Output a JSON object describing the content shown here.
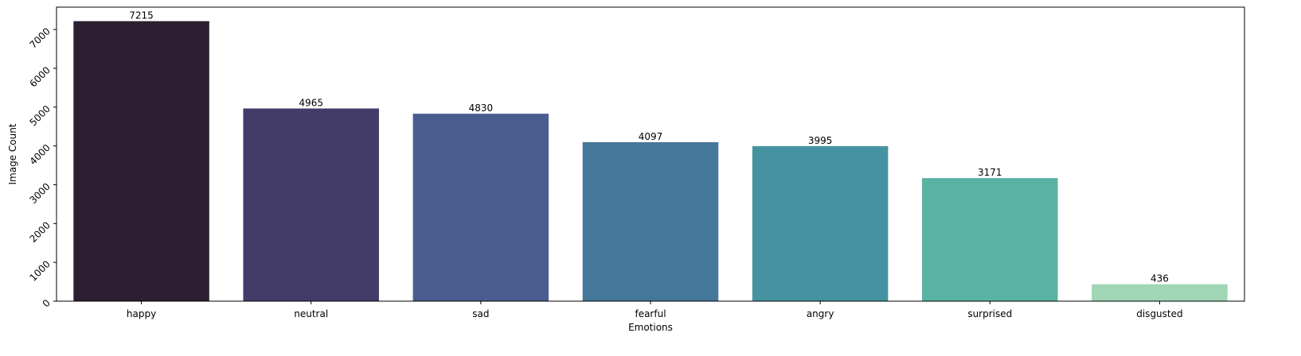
{
  "chart_data": {
    "type": "bar",
    "categories": [
      "happy",
      "neutral",
      "sad",
      "fearful",
      "angry",
      "surprised",
      "disgusted"
    ],
    "values": [
      7215,
      4965,
      4830,
      4097,
      3995,
      3171,
      436
    ],
    "colors": [
      "#2b1f31",
      "#433b68",
      "#4a5d91",
      "#44789a",
      "#4593a0",
      "#5ab3a2",
      "#a0d5b6"
    ],
    "title": "",
    "xlabel": "Emotions",
    "ylabel": "Image Count",
    "ylim": [
      0,
      7576
    ],
    "yticks": [
      0,
      1000,
      2000,
      3000,
      4000,
      5000,
      6000,
      7000
    ],
    "grid": false,
    "show_data_labels": true
  }
}
